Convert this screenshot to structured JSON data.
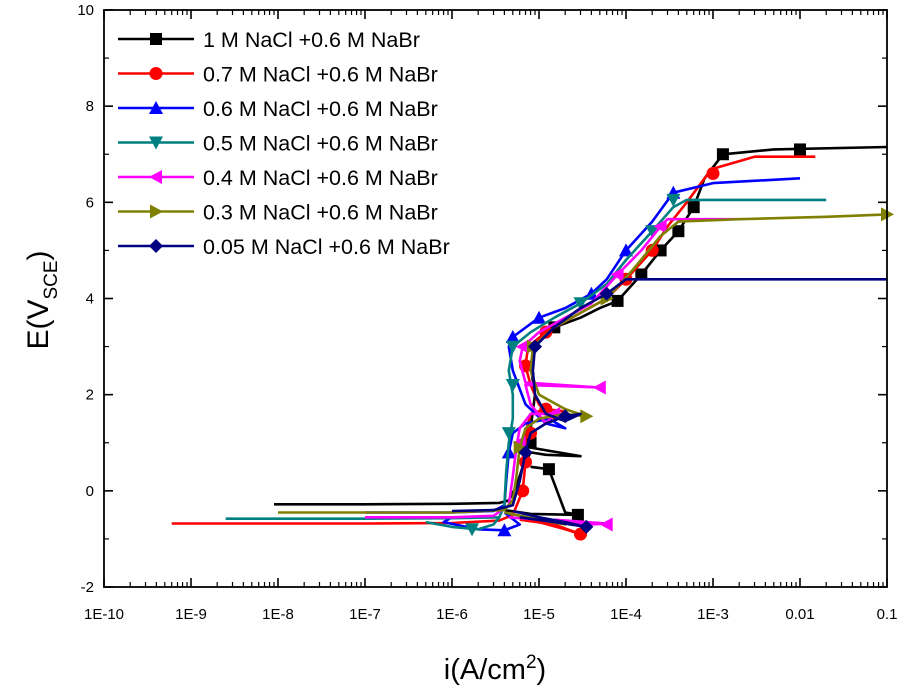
{
  "chart_data": {
    "type": "line",
    "title": "",
    "xlabel": {
      "main": "i(A/cm",
      "sup": "2",
      "tail": ")"
    },
    "ylabel": {
      "main": "E(V",
      "sub": "SCE",
      "tail": ")"
    },
    "xscale": "log",
    "xlim": [
      1e-10,
      0.1
    ],
    "ylim": [
      -2,
      10
    ],
    "x_ticks": [
      {
        "v": 1e-10,
        "label": "1E-10"
      },
      {
        "v": 1e-09,
        "label": "1E-9"
      },
      {
        "v": 1e-08,
        "label": "1E-8"
      },
      {
        "v": 1e-07,
        "label": "1E-7"
      },
      {
        "v": 1e-06,
        "label": "1E-6"
      },
      {
        "v": 1e-05,
        "label": "1E-5"
      },
      {
        "v": 0.0001,
        "label": "1E-4"
      },
      {
        "v": 0.001,
        "label": "1E-3"
      },
      {
        "v": 0.01,
        "label": "0.01"
      },
      {
        "v": 0.1,
        "label": "0.1"
      }
    ],
    "y_ticks": [
      {
        "v": -2,
        "label": "-2"
      },
      {
        "v": 0,
        "label": "0"
      },
      {
        "v": 2,
        "label": "2"
      },
      {
        "v": 4,
        "label": "4"
      },
      {
        "v": 6,
        "label": "6"
      },
      {
        "v": 8,
        "label": "8"
      },
      {
        "v": 10,
        "label": "10"
      }
    ],
    "legend_position": "top-left",
    "grid": false,
    "series": [
      {
        "name": "1 M NaCl +0.6 M NaBr",
        "color": "#000000",
        "marker": "square",
        "points": [
          [
            9e-09,
            -0.28
          ],
          [
            1e-07,
            -0.28
          ],
          [
            1e-06,
            -0.27
          ],
          [
            3.5e-06,
            -0.25
          ],
          [
            4.5e-06,
            -0.2
          ],
          [
            5.5e-06,
            0.1
          ],
          [
            6.5e-06,
            0.5
          ],
          [
            8e-06,
            0.8
          ],
          [
            1.2e-05,
            0.75
          ],
          [
            3e-05,
            0.72
          ],
          [
            8e-06,
            0.9
          ],
          [
            8e-06,
            1.3
          ],
          [
            9e-06,
            2.0
          ],
          [
            8e-06,
            2.6
          ],
          [
            9e-06,
            3.1
          ],
          [
            1.5e-05,
            3.4
          ],
          [
            3e-05,
            3.6
          ],
          [
            5e-05,
            3.8
          ],
          [
            8e-05,
            3.95
          ],
          [
            0.00015,
            4.5
          ],
          [
            0.00025,
            5.0
          ],
          [
            0.0004,
            5.4
          ],
          [
            0.0006,
            5.9
          ],
          [
            0.0008,
            6.5
          ],
          [
            0.0013,
            7.0
          ],
          [
            0.005,
            7.1
          ],
          [
            0.1,
            7.15
          ]
        ],
        "points2": [
          [
            8e-06,
            0.5
          ],
          [
            1.3e-05,
            0.45
          ],
          [
            2e-05,
            -0.45
          ],
          [
            3e-05,
            -0.5
          ],
          [
            8e-06,
            -0.48
          ],
          [
            4e-06,
            -0.4
          ]
        ],
        "markers": [
          [
            8e-06,
            1.0
          ],
          [
            1.3e-05,
            0.45
          ],
          [
            2.8e-05,
            -0.5
          ],
          [
            1.5e-05,
            3.4
          ],
          [
            8e-05,
            3.95
          ],
          [
            0.00015,
            4.5
          ],
          [
            0.00025,
            5.0
          ],
          [
            0.0004,
            5.4
          ],
          [
            0.0006,
            5.9
          ],
          [
            0.0013,
            7.0
          ],
          [
            0.01,
            7.1
          ]
        ]
      },
      {
        "name": "0.7 M NaCl +0.6 M NaBr",
        "color": "#ff0000",
        "marker": "circle",
        "points": [
          [
            6e-10,
            -0.68
          ],
          [
            1e-08,
            -0.68
          ],
          [
            1e-07,
            -0.68
          ],
          [
            1e-06,
            -0.67
          ],
          [
            3.5e-06,
            -0.62
          ],
          [
            5e-06,
            -0.5
          ],
          [
            6.5e-06,
            0.0
          ],
          [
            7e-06,
            0.6
          ],
          [
            7e-06,
            1.2
          ],
          [
            8e-06,
            1.6
          ],
          [
            1.2e-05,
            1.7
          ],
          [
            2e-05,
            1.65
          ],
          [
            1.5e-05,
            1.5
          ],
          [
            1e-05,
            1.8
          ],
          [
            8e-06,
            2.2
          ],
          [
            7e-06,
            2.6
          ],
          [
            7.5e-06,
            3.0
          ],
          [
            1.2e-05,
            3.3
          ],
          [
            3e-05,
            3.7
          ],
          [
            6e-05,
            4.0
          ],
          [
            0.0001,
            4.4
          ],
          [
            0.0002,
            5.0
          ],
          [
            0.0003,
            5.5
          ],
          [
            0.0005,
            6.0
          ],
          [
            0.0008,
            6.5
          ],
          [
            0.001,
            6.7
          ],
          [
            0.003,
            6.95
          ],
          [
            0.015,
            6.95
          ]
        ],
        "points2": [
          [
            6e-06,
            -0.55
          ],
          [
            1e-05,
            -0.65
          ],
          [
            2e-05,
            -0.8
          ],
          [
            3e-05,
            -0.9
          ],
          [
            1.5e-05,
            -0.7
          ],
          [
            6e-06,
            -0.6
          ]
        ],
        "markers": [
          [
            6.5e-06,
            0.0
          ],
          [
            7e-06,
            0.6
          ],
          [
            8e-06,
            1.2
          ],
          [
            1.2e-05,
            1.7
          ],
          [
            7e-06,
            2.6
          ],
          [
            1.2e-05,
            3.3
          ],
          [
            0.0001,
            4.4
          ],
          [
            0.0002,
            5.0
          ],
          [
            0.001,
            6.6
          ],
          [
            3e-05,
            -0.9
          ]
        ]
      },
      {
        "name": "0.6 M NaCl +0.6 M NaBr",
        "color": "#0000ff",
        "marker": "triangle-up",
        "points": [
          [
            1e-07,
            -0.45
          ],
          [
            1e-06,
            -0.45
          ],
          [
            3e-06,
            -0.42
          ],
          [
            4e-06,
            -0.3
          ],
          [
            4.2e-06,
            0.2
          ],
          [
            4.5e-06,
            0.8
          ],
          [
            5e-06,
            1.2
          ],
          [
            7e-06,
            1.4
          ],
          [
            1.3e-05,
            1.5
          ],
          [
            2e-05,
            1.3
          ],
          [
            1.2e-05,
            1.4
          ],
          [
            7e-06,
            1.8
          ],
          [
            5e-06,
            2.5
          ],
          [
            4.5e-06,
            3.0
          ],
          [
            5e-06,
            3.2
          ],
          [
            1e-05,
            3.6
          ],
          [
            2e-05,
            3.8
          ],
          [
            4e-05,
            4.1
          ],
          [
            6e-05,
            4.4
          ],
          [
            0.0001,
            5.0
          ],
          [
            0.0002,
            5.6
          ],
          [
            0.00035,
            6.2
          ],
          [
            0.001,
            6.4
          ],
          [
            0.01,
            6.5
          ]
        ],
        "points2": [
          [
            4e-06,
            -0.45
          ],
          [
            6e-06,
            -0.7
          ],
          [
            4e-06,
            -0.82
          ],
          [
            2e-06,
            -0.8
          ],
          [
            8e-07,
            -0.65
          ],
          [
            1e-06,
            -0.55
          ]
        ],
        "markers": [
          [
            4.5e-06,
            0.8
          ],
          [
            5e-06,
            3.2
          ],
          [
            1e-05,
            3.6
          ],
          [
            4e-05,
            4.1
          ],
          [
            0.0001,
            5.0
          ],
          [
            0.00035,
            6.2
          ],
          [
            4e-06,
            -0.82
          ]
        ]
      },
      {
        "name": "0.5 M NaCl +0.6 M NaBr",
        "color": "#008080",
        "marker": "triangle-down",
        "points": [
          [
            2.5e-09,
            -0.58
          ],
          [
            1e-08,
            -0.58
          ],
          [
            1e-07,
            -0.58
          ],
          [
            1e-06,
            -0.57
          ],
          [
            3.5e-06,
            -0.55
          ],
          [
            4e-06,
            -0.3
          ],
          [
            4.2e-06,
            0.4
          ],
          [
            4.5e-06,
            1.0
          ],
          [
            5e-06,
            1.5
          ],
          [
            5e-06,
            2.0
          ],
          [
            4.5e-06,
            2.5
          ],
          [
            5e-06,
            3.0
          ],
          [
            8e-06,
            3.3
          ],
          [
            1.5e-05,
            3.6
          ],
          [
            3e-05,
            3.9
          ],
          [
            6e-05,
            4.3
          ],
          [
            0.0001,
            4.8
          ],
          [
            0.0002,
            5.4
          ],
          [
            0.00035,
            5.9
          ],
          [
            0.0005,
            6.05
          ],
          [
            0.002,
            6.05
          ],
          [
            0.02,
            6.05
          ]
        ],
        "points2": [
          [
            3.5e-06,
            -0.55
          ],
          [
            3e-06,
            -0.7
          ],
          [
            2e-06,
            -0.8
          ],
          [
            1e-06,
            -0.75
          ],
          [
            5e-07,
            -0.65
          ]
        ],
        "markers": [
          [
            4.5e-06,
            1.2
          ],
          [
            5e-06,
            2.2
          ],
          [
            5e-06,
            3.0
          ],
          [
            3e-05,
            3.9
          ],
          [
            0.0002,
            5.4
          ],
          [
            0.00035,
            6.05
          ],
          [
            1.7e-06,
            -0.8
          ]
        ]
      },
      {
        "name": "0.4 M NaCl +0.6 M NaBr",
        "color": "#ff00ff",
        "marker": "triangle-left",
        "points": [
          [
            1e-07,
            -0.55
          ],
          [
            1e-06,
            -0.55
          ],
          [
            3e-06,
            -0.52
          ],
          [
            4.5e-06,
            -0.3
          ],
          [
            5e-06,
            0.3
          ],
          [
            5.5e-06,
            0.9
          ],
          [
            6e-06,
            1.3
          ],
          [
            8e-06,
            1.6
          ],
          [
            1.5e-05,
            1.6
          ],
          [
            1.2e-05,
            1.4
          ],
          [
            8e-06,
            1.8
          ],
          [
            7e-06,
            2.2
          ],
          [
            5e-05,
            2.15
          ],
          [
            7e-06,
            2.25
          ],
          [
            6e-06,
            2.7
          ],
          [
            6.5e-06,
            3.0
          ],
          [
            1e-05,
            3.3
          ],
          [
            2e-05,
            3.6
          ],
          [
            4e-05,
            3.9
          ],
          [
            8e-05,
            4.5
          ],
          [
            0.00015,
            5.0
          ],
          [
            0.00025,
            5.5
          ],
          [
            0.0003,
            5.65
          ],
          [
            0.002,
            5.65
          ]
        ],
        "points2": [
          [
            4.5e-06,
            -0.55
          ],
          [
            1e-05,
            -0.6
          ],
          [
            2e-05,
            -0.65
          ],
          [
            4e-05,
            -0.7
          ],
          [
            6e-05,
            -0.68
          ],
          [
            1.5e-05,
            -0.6
          ]
        ],
        "markers": [
          [
            6e-06,
            1.0
          ],
          [
            1.5e-05,
            1.6
          ],
          [
            5e-05,
            2.15
          ],
          [
            6.5e-06,
            3.0
          ],
          [
            8e-05,
            4.5
          ],
          [
            0.00025,
            5.5
          ],
          [
            6e-05,
            -0.7
          ]
        ]
      },
      {
        "name": "0.3 M NaCl +0.6 M NaBr",
        "color": "#808000",
        "marker": "triangle-right",
        "points": [
          [
            1e-08,
            -0.45
          ],
          [
            1e-07,
            -0.45
          ],
          [
            1e-06,
            -0.45
          ],
          [
            4e-06,
            -0.4
          ],
          [
            5e-06,
            -0.2
          ],
          [
            5.5e-06,
            0.3
          ],
          [
            6e-06,
            0.9
          ],
          [
            7e-06,
            1.3
          ],
          [
            1e-05,
            1.5
          ],
          [
            2e-05,
            1.6
          ],
          [
            3.5e-05,
            1.55
          ],
          [
            2e-05,
            1.7
          ],
          [
            1e-05,
            2.0
          ],
          [
            8e-06,
            2.5
          ],
          [
            8.5e-06,
            3.0
          ],
          [
            1.5e-05,
            3.4
          ],
          [
            3e-05,
            3.7
          ],
          [
            6e-05,
            4.0
          ],
          [
            0.00012,
            4.6
          ],
          [
            0.00025,
            5.3
          ],
          [
            0.0004,
            5.6
          ],
          [
            0.002,
            5.65
          ],
          [
            0.02,
            5.7
          ],
          [
            0.1,
            5.75
          ]
        ],
        "points2": [
          [
            4e-06,
            -0.45
          ],
          [
            1e-05,
            -0.6
          ],
          [
            2e-05,
            -0.7
          ],
          [
            1e-05,
            -0.55
          ]
        ],
        "markers": [
          [
            6e-06,
            0.9
          ],
          [
            3.5e-05,
            1.55
          ],
          [
            8.5e-06,
            3.0
          ],
          [
            6e-05,
            4.0
          ],
          [
            0.1,
            5.75
          ]
        ]
      },
      {
        "name": "0.05 M NaCl +0.6 M NaBr",
        "color": "#000080",
        "marker": "diamond",
        "points": [
          [
            1e-06,
            -0.42
          ],
          [
            3e-06,
            -0.4
          ],
          [
            5e-06,
            -0.3
          ],
          [
            6e-06,
            0.2
          ],
          [
            7e-06,
            0.8
          ],
          [
            8e-06,
            1.2
          ],
          [
            1.2e-05,
            1.4
          ],
          [
            2e-05,
            1.55
          ],
          [
            3e-05,
            1.6
          ],
          [
            2e-05,
            1.45
          ],
          [
            1.2e-05,
            1.6
          ],
          [
            9e-06,
            2.0
          ],
          [
            8.5e-06,
            2.5
          ],
          [
            9e-06,
            3.0
          ],
          [
            1.5e-05,
            3.4
          ],
          [
            3e-05,
            3.8
          ],
          [
            6e-05,
            4.1
          ],
          [
            0.0001,
            4.4
          ],
          [
            0.001,
            4.4
          ],
          [
            0.1,
            4.4
          ]
        ],
        "points2": [
          [
            5e-06,
            -0.42
          ],
          [
            1e-05,
            -0.55
          ],
          [
            2e-05,
            -0.65
          ],
          [
            3.5e-05,
            -0.75
          ],
          [
            1.5e-05,
            -0.65
          ],
          [
            6e-06,
            -0.55
          ]
        ],
        "markers": [
          [
            7e-06,
            0.8
          ],
          [
            2e-05,
            1.55
          ],
          [
            9e-06,
            3.0
          ],
          [
            6e-05,
            4.1
          ],
          [
            3.5e-05,
            -0.75
          ]
        ]
      }
    ]
  }
}
